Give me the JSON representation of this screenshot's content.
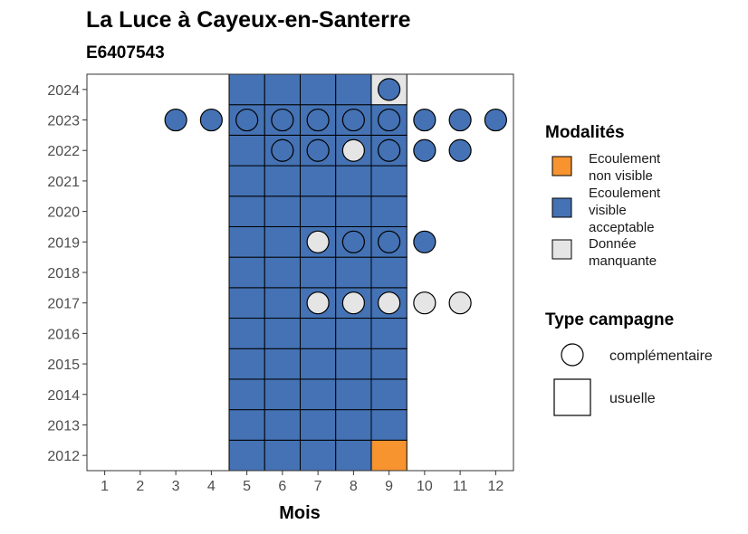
{
  "chart_data": {
    "type": "heatmap",
    "title": "La Luce à Cayeux-en-Santerre",
    "subtitle": "E6407543",
    "xlabel": "Mois",
    "ylabel": "",
    "x_ticks": [
      1,
      2,
      3,
      4,
      5,
      6,
      7,
      8,
      9,
      10,
      11,
      12
    ],
    "y_ticks": [
      2012,
      2013,
      2014,
      2015,
      2016,
      2017,
      2018,
      2019,
      2020,
      2021,
      2022,
      2023,
      2024
    ],
    "grid": false,
    "colors": {
      "ecoulement_non_visible": "#f7942f",
      "ecoulement_visible_acceptable": "#4472b4",
      "donnee_manquante": "#e5e5e5"
    },
    "legend": {
      "placement": "right",
      "modalites": {
        "title": "Modalités",
        "items": [
          {
            "key": "ecoulement_non_visible",
            "lines": [
              "Ecoulement",
              "non visible"
            ]
          },
          {
            "key": "ecoulement_visible_acceptable",
            "lines": [
              "Ecoulement",
              "visible",
              "acceptable"
            ]
          },
          {
            "key": "donnee_manquante",
            "lines": [
              "Donnée",
              "manquante"
            ]
          }
        ]
      },
      "type_campagne": {
        "title": "Type campagne",
        "items": [
          {
            "shape": "circle",
            "label": "complémentaire"
          },
          {
            "shape": "square",
            "label": "usuelle"
          }
        ]
      }
    },
    "usuelle": [
      {
        "year": 2012,
        "values": {
          "5": "ecoulement_visible_acceptable",
          "6": "ecoulement_visible_acceptable",
          "7": "ecoulement_visible_acceptable",
          "8": "ecoulement_visible_acceptable",
          "9": "ecoulement_non_visible"
        }
      },
      {
        "year": 2013,
        "values": {
          "5": "ecoulement_visible_acceptable",
          "6": "ecoulement_visible_acceptable",
          "7": "ecoulement_visible_acceptable",
          "8": "ecoulement_visible_acceptable",
          "9": "ecoulement_visible_acceptable"
        }
      },
      {
        "year": 2014,
        "values": {
          "5": "ecoulement_visible_acceptable",
          "6": "ecoulement_visible_acceptable",
          "7": "ecoulement_visible_acceptable",
          "8": "ecoulement_visible_acceptable",
          "9": "ecoulement_visible_acceptable"
        }
      },
      {
        "year": 2015,
        "values": {
          "5": "ecoulement_visible_acceptable",
          "6": "ecoulement_visible_acceptable",
          "7": "ecoulement_visible_acceptable",
          "8": "ecoulement_visible_acceptable",
          "9": "ecoulement_visible_acceptable"
        }
      },
      {
        "year": 2016,
        "values": {
          "5": "ecoulement_visible_acceptable",
          "6": "ecoulement_visible_acceptable",
          "7": "ecoulement_visible_acceptable",
          "8": "ecoulement_visible_acceptable",
          "9": "ecoulement_visible_acceptable"
        }
      },
      {
        "year": 2017,
        "values": {
          "5": "ecoulement_visible_acceptable",
          "6": "ecoulement_visible_acceptable",
          "7": "ecoulement_visible_acceptable",
          "8": "ecoulement_visible_acceptable",
          "9": "ecoulement_visible_acceptable"
        }
      },
      {
        "year": 2018,
        "values": {
          "5": "ecoulement_visible_acceptable",
          "6": "ecoulement_visible_acceptable",
          "7": "ecoulement_visible_acceptable",
          "8": "ecoulement_visible_acceptable",
          "9": "ecoulement_visible_acceptable"
        }
      },
      {
        "year": 2019,
        "values": {
          "5": "ecoulement_visible_acceptable",
          "6": "ecoulement_visible_acceptable",
          "7": "ecoulement_visible_acceptable",
          "8": "ecoulement_visible_acceptable",
          "9": "ecoulement_visible_acceptable"
        }
      },
      {
        "year": 2020,
        "values": {
          "5": "ecoulement_visible_acceptable",
          "6": "ecoulement_visible_acceptable",
          "7": "ecoulement_visible_acceptable",
          "8": "ecoulement_visible_acceptable",
          "9": "ecoulement_visible_acceptable"
        }
      },
      {
        "year": 2021,
        "values": {
          "5": "ecoulement_visible_acceptable",
          "6": "ecoulement_visible_acceptable",
          "7": "ecoulement_visible_acceptable",
          "8": "ecoulement_visible_acceptable",
          "9": "ecoulement_visible_acceptable"
        }
      },
      {
        "year": 2022,
        "values": {
          "5": "ecoulement_visible_acceptable",
          "6": "ecoulement_visible_acceptable",
          "7": "ecoulement_visible_acceptable",
          "8": "ecoulement_visible_acceptable",
          "9": "ecoulement_visible_acceptable"
        }
      },
      {
        "year": 2023,
        "values": {
          "5": "ecoulement_visible_acceptable",
          "6": "ecoulement_visible_acceptable",
          "7": "ecoulement_visible_acceptable",
          "8": "ecoulement_visible_acceptable",
          "9": "ecoulement_visible_acceptable"
        }
      },
      {
        "year": 2024,
        "values": {
          "5": "ecoulement_visible_acceptable",
          "6": "ecoulement_visible_acceptable",
          "7": "ecoulement_visible_acceptable",
          "8": "ecoulement_visible_acceptable",
          "9": "donnee_manquante"
        }
      }
    ],
    "complementaire": [
      {
        "year": 2024,
        "month": 9,
        "value": "ecoulement_visible_acceptable"
      },
      {
        "year": 2023,
        "month": 3,
        "value": "ecoulement_visible_acceptable"
      },
      {
        "year": 2023,
        "month": 4,
        "value": "ecoulement_visible_acceptable"
      },
      {
        "year": 2023,
        "month": 5,
        "value": "ecoulement_visible_acceptable"
      },
      {
        "year": 2023,
        "month": 6,
        "value": "ecoulement_visible_acceptable"
      },
      {
        "year": 2023,
        "month": 7,
        "value": "ecoulement_visible_acceptable"
      },
      {
        "year": 2023,
        "month": 8,
        "value": "ecoulement_visible_acceptable"
      },
      {
        "year": 2023,
        "month": 9,
        "value": "ecoulement_visible_acceptable"
      },
      {
        "year": 2023,
        "month": 10,
        "value": "ecoulement_visible_acceptable"
      },
      {
        "year": 2023,
        "month": 11,
        "value": "ecoulement_visible_acceptable"
      },
      {
        "year": 2023,
        "month": 12,
        "value": "ecoulement_visible_acceptable"
      },
      {
        "year": 2022,
        "month": 6,
        "value": "ecoulement_visible_acceptable"
      },
      {
        "year": 2022,
        "month": 7,
        "value": "ecoulement_visible_acceptable"
      },
      {
        "year": 2022,
        "month": 8,
        "value": "donnee_manquante"
      },
      {
        "year": 2022,
        "month": 9,
        "value": "ecoulement_visible_acceptable"
      },
      {
        "year": 2022,
        "month": 10,
        "value": "ecoulement_visible_acceptable"
      },
      {
        "year": 2022,
        "month": 11,
        "value": "ecoulement_visible_acceptable"
      },
      {
        "year": 2019,
        "month": 7,
        "value": "donnee_manquante"
      },
      {
        "year": 2019,
        "month": 8,
        "value": "ecoulement_visible_acceptable"
      },
      {
        "year": 2019,
        "month": 9,
        "value": "ecoulement_visible_acceptable"
      },
      {
        "year": 2019,
        "month": 10,
        "value": "ecoulement_visible_acceptable"
      },
      {
        "year": 2017,
        "month": 7,
        "value": "donnee_manquante"
      },
      {
        "year": 2017,
        "month": 8,
        "value": "donnee_manquante"
      },
      {
        "year": 2017,
        "month": 9,
        "value": "donnee_manquante"
      },
      {
        "year": 2017,
        "month": 10,
        "value": "donnee_manquante"
      },
      {
        "year": 2017,
        "month": 11,
        "value": "donnee_manquante"
      }
    ]
  }
}
